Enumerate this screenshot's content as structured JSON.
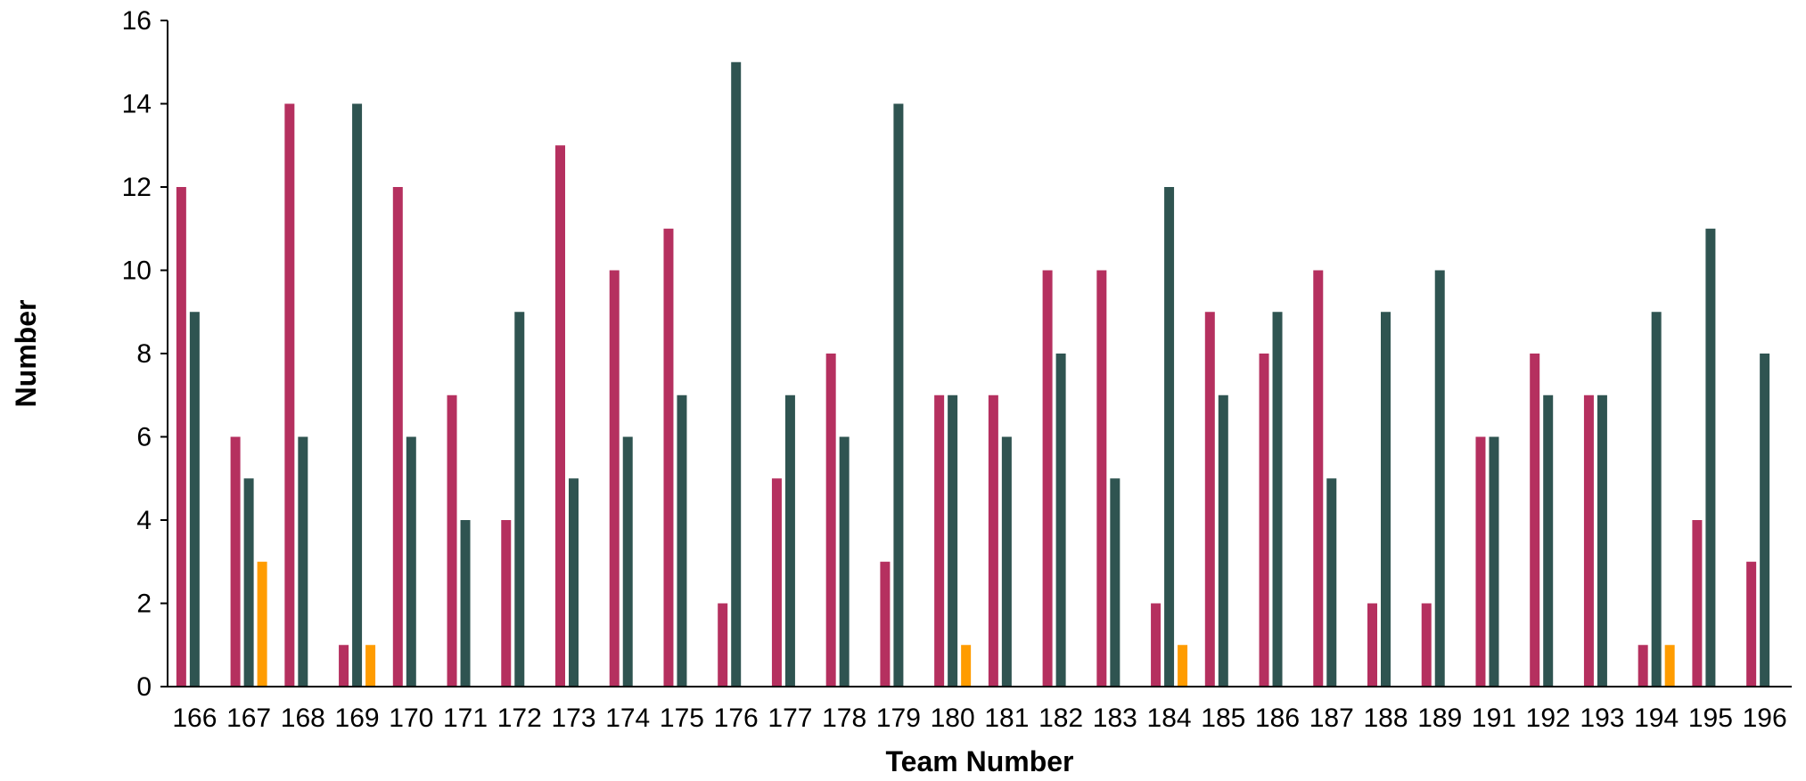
{
  "chart_data": {
    "type": "bar",
    "xlabel": "Team Number",
    "ylabel": "Number",
    "ylim": [
      0,
      16
    ],
    "y_ticks": [
      0,
      2,
      4,
      6,
      8,
      10,
      12,
      14,
      16
    ],
    "grid": false,
    "legend": "none",
    "categories": [
      "166",
      "167",
      "168",
      "169",
      "170",
      "171",
      "172",
      "173",
      "174",
      "175",
      "176",
      "177",
      "178",
      "179",
      "180",
      "181",
      "182",
      "183",
      "184",
      "185",
      "186",
      "187",
      "188",
      "189",
      "191",
      "192",
      "193",
      "194",
      "195",
      "196"
    ],
    "series": [
      {
        "color": "#B5305F",
        "values": [
          12,
          6,
          14,
          1,
          12,
          7,
          4,
          13,
          10,
          11,
          2,
          5,
          8,
          3,
          7,
          7,
          10,
          10,
          2,
          9,
          8,
          10,
          2,
          2,
          6,
          8,
          7,
          1,
          4,
          3
        ]
      },
      {
        "color": "#2F5451",
        "values": [
          9,
          5,
          6,
          14,
          6,
          4,
          9,
          5,
          6,
          7,
          15,
          7,
          6,
          14,
          7,
          6,
          8,
          5,
          12,
          7,
          9,
          5,
          9,
          10,
          6,
          7,
          7,
          9,
          11,
          8
        ]
      },
      {
        "color": "#FF9C00",
        "values": [
          0,
          3,
          0,
          1,
          0,
          0,
          0,
          0,
          0,
          0,
          0,
          0,
          0,
          0,
          1,
          0,
          0,
          0,
          1,
          0,
          0,
          0,
          0,
          0,
          0,
          0,
          0,
          1,
          0,
          0
        ]
      }
    ]
  }
}
